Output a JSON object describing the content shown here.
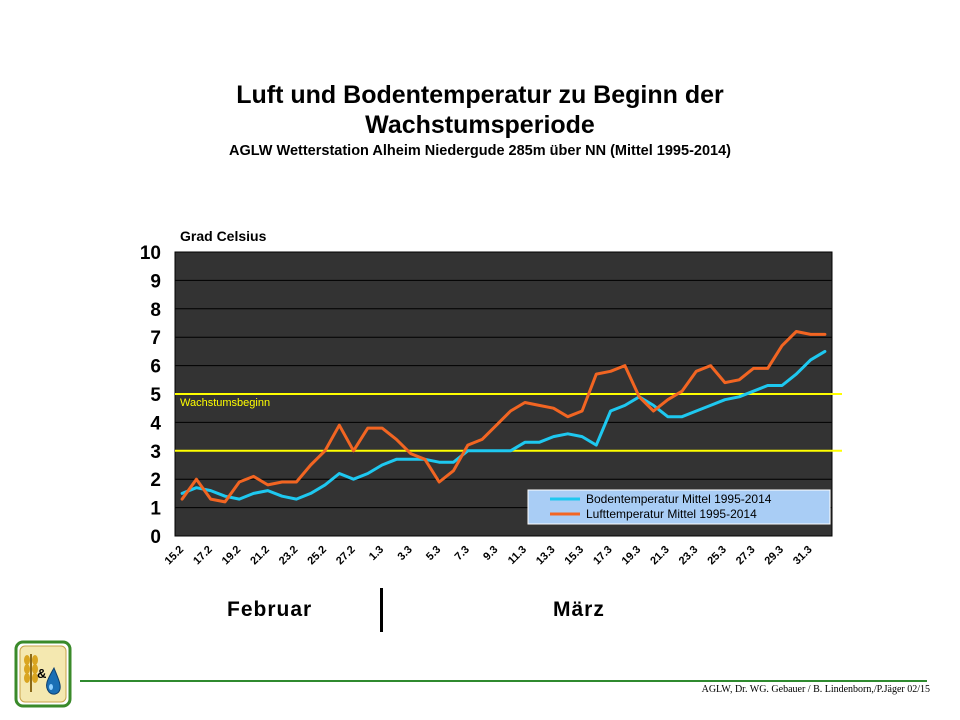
{
  "slide": {
    "title": "Luft und Bodentemperatur zu Beginn der Wachstumsperiode",
    "subtitle": "AGLW Wetterstation Alheim Niedergude 285m über NN (Mittel 1995-2014)",
    "footer": "AGLW, Dr. WG. Gebauer / B. Lindenborn,/P.Jäger 02/15",
    "months": [
      "Februar",
      "März"
    ]
  },
  "colors": {
    "plot_background": "#333333",
    "boden": "#1ec8f0",
    "luft": "#f26522",
    "threshold": "#ffff00",
    "legend_background": "#a9cdf5",
    "footer_line": "#2f8a2f"
  },
  "chart_data": {
    "type": "line",
    "title": "",
    "ylabel": "Grad Celsius",
    "xlabel": "",
    "ylim": [
      0,
      10
    ],
    "yticks": [
      0,
      1,
      2,
      3,
      4,
      5,
      6,
      7,
      8,
      9,
      10
    ],
    "x": [
      "15.2",
      "16.2",
      "17.2",
      "18.2",
      "19.2",
      "20.2",
      "21.2",
      "22.2",
      "23.2",
      "24.2",
      "25.2",
      "26.2",
      "27.2",
      "28.2",
      "1.3",
      "2.3",
      "3.3",
      "4.3",
      "5.3",
      "6.3",
      "7.3",
      "8.3",
      "9.3",
      "10.3",
      "11.3",
      "12.3",
      "13.3",
      "14.3",
      "15.3",
      "16.3",
      "17.3",
      "18.3",
      "19.3",
      "20.3",
      "21.3",
      "22.3",
      "23.3",
      "24.3",
      "25.3",
      "26.3",
      "27.3",
      "28.3",
      "29.3",
      "30.3",
      "31.3",
      "1.4"
    ],
    "xtick_labels": [
      "15.2",
      "17.2",
      "19.2",
      "21.2",
      "23.2",
      "25.2",
      "27.2",
      "1.3",
      "3.3",
      "5.3",
      "7.3",
      "9.3",
      "11.3",
      "13.3",
      "15.3",
      "17.3",
      "19.3",
      "21.3",
      "23.3",
      "25.3",
      "27.3",
      "29.3",
      "31.3"
    ],
    "series": [
      {
        "name": "Bodentemperatur Mittel 1995-2014",
        "color": "#1ec8f0",
        "values": [
          1.5,
          1.7,
          1.6,
          1.4,
          1.3,
          1.5,
          1.6,
          1.4,
          1.3,
          1.5,
          1.8,
          2.2,
          2.0,
          2.2,
          2.5,
          2.7,
          2.7,
          2.7,
          2.6,
          2.6,
          3.0,
          3.0,
          3.0,
          3.0,
          3.3,
          3.3,
          3.5,
          3.6,
          3.5,
          3.2,
          4.4,
          4.6,
          4.9,
          4.6,
          4.2,
          4.2,
          4.4,
          4.6,
          4.8,
          4.9,
          5.1,
          5.3,
          5.3,
          5.7,
          6.2,
          6.5
        ]
      },
      {
        "name": "Lufttemperatur Mittel 1995-2014",
        "color": "#f26522",
        "values": [
          1.3,
          2.0,
          1.3,
          1.2,
          1.9,
          2.1,
          1.8,
          1.9,
          1.9,
          2.5,
          3.0,
          3.9,
          3.0,
          3.8,
          3.8,
          3.4,
          2.9,
          2.7,
          1.9,
          2.3,
          3.2,
          3.4,
          3.9,
          4.4,
          4.7,
          4.6,
          4.5,
          4.2,
          4.4,
          5.7,
          5.8,
          6.0,
          4.9,
          4.4,
          4.8,
          5.1,
          5.8,
          6.0,
          5.4,
          5.5,
          5.9,
          5.9,
          6.7,
          7.2,
          7.1,
          7.1
        ]
      }
    ],
    "thresholds": [
      {
        "value": 5,
        "label": "Wachstumsbeginn",
        "color": "#ffff00"
      },
      {
        "value": 3,
        "label": "",
        "color": "#ffff00"
      }
    ],
    "legend_position": "bottom-right",
    "grid": true
  }
}
